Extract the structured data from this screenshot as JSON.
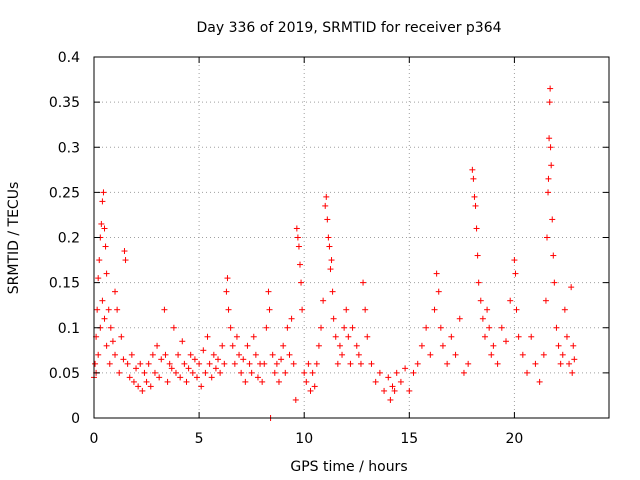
{
  "chart_data": {
    "type": "scatter",
    "title": "Day 336 of 2019, SRMTID for receiver p364",
    "xlabel": "GPS time / hours",
    "ylabel": "SRMTID / TECUs",
    "xlim": [
      0,
      24.5
    ],
    "ylim": [
      0,
      0.4
    ],
    "x_ticks": [
      0,
      5,
      10,
      15,
      20
    ],
    "y_ticks": [
      0,
      0.05,
      0.1,
      0.15,
      0.2,
      0.25,
      0.3,
      0.35,
      0.4
    ],
    "x_tick_labels": [
      "0",
      "5",
      "10",
      "15",
      "20"
    ],
    "y_tick_labels": [
      "0",
      "0.05",
      "0.1",
      "0.15",
      "0.2",
      "0.25",
      "0.3",
      "0.35",
      "0.4"
    ],
    "marker": "+",
    "color": "#ff0000",
    "grid": true,
    "series": [
      {
        "name": "SRMTID",
        "points": [
          [
            0.0,
            0.045
          ],
          [
            0.05,
            0.06
          ],
          [
            0.1,
            0.09
          ],
          [
            0.1,
            0.05
          ],
          [
            0.15,
            0.12
          ],
          [
            0.2,
            0.07
          ],
          [
            0.2,
            0.155
          ],
          [
            0.25,
            0.175
          ],
          [
            0.3,
            0.2
          ],
          [
            0.3,
            0.1
          ],
          [
            0.35,
            0.215
          ],
          [
            0.4,
            0.24
          ],
          [
            0.4,
            0.13
          ],
          [
            0.45,
            0.25
          ],
          [
            0.5,
            0.21
          ],
          [
            0.5,
            0.11
          ],
          [
            0.55,
            0.19
          ],
          [
            0.6,
            0.08
          ],
          [
            0.6,
            0.16
          ],
          [
            0.7,
            0.12
          ],
          [
            0.75,
            0.06
          ],
          [
            0.8,
            0.1
          ],
          [
            0.9,
            0.085
          ],
          [
            1.0,
            0.14
          ],
          [
            1.0,
            0.07
          ],
          [
            1.1,
            0.12
          ],
          [
            1.2,
            0.05
          ],
          [
            1.3,
            0.09
          ],
          [
            1.4,
            0.065
          ],
          [
            1.45,
            0.185
          ],
          [
            1.5,
            0.175
          ],
          [
            1.6,
            0.06
          ],
          [
            1.7,
            0.045
          ],
          [
            1.8,
            0.07
          ],
          [
            1.9,
            0.04
          ],
          [
            2.0,
            0.055
          ],
          [
            2.1,
            0.035
          ],
          [
            2.2,
            0.06
          ],
          [
            2.3,
            0.03
          ],
          [
            2.4,
            0.05
          ],
          [
            2.5,
            0.04
          ],
          [
            2.6,
            0.06
          ],
          [
            2.7,
            0.035
          ],
          [
            2.8,
            0.07
          ],
          [
            2.9,
            0.05
          ],
          [
            3.0,
            0.08
          ],
          [
            3.1,
            0.045
          ],
          [
            3.2,
            0.065
          ],
          [
            3.35,
            0.12
          ],
          [
            3.4,
            0.07
          ],
          [
            3.5,
            0.04
          ],
          [
            3.6,
            0.06
          ],
          [
            3.7,
            0.055
          ],
          [
            3.8,
            0.1
          ],
          [
            3.9,
            0.05
          ],
          [
            4.0,
            0.07
          ],
          [
            4.1,
            0.045
          ],
          [
            4.2,
            0.085
          ],
          [
            4.3,
            0.06
          ],
          [
            4.4,
            0.04
          ],
          [
            4.5,
            0.055
          ],
          [
            4.6,
            0.07
          ],
          [
            4.7,
            0.05
          ],
          [
            4.8,
            0.065
          ],
          [
            4.9,
            0.045
          ],
          [
            5.0,
            0.06
          ],
          [
            5.1,
            0.035
          ],
          [
            5.2,
            0.075
          ],
          [
            5.3,
            0.05
          ],
          [
            5.4,
            0.09
          ],
          [
            5.5,
            0.06
          ],
          [
            5.6,
            0.045
          ],
          [
            5.7,
            0.07
          ],
          [
            5.8,
            0.055
          ],
          [
            5.9,
            0.065
          ],
          [
            6.0,
            0.05
          ],
          [
            6.1,
            0.08
          ],
          [
            6.2,
            0.06
          ],
          [
            6.3,
            0.14
          ],
          [
            6.35,
            0.155
          ],
          [
            6.4,
            0.12
          ],
          [
            6.5,
            0.1
          ],
          [
            6.6,
            0.08
          ],
          [
            6.7,
            0.06
          ],
          [
            6.8,
            0.09
          ],
          [
            6.9,
            0.07
          ],
          [
            7.0,
            0.05
          ],
          [
            7.1,
            0.065
          ],
          [
            7.2,
            0.04
          ],
          [
            7.3,
            0.08
          ],
          [
            7.4,
            0.06
          ],
          [
            7.5,
            0.05
          ],
          [
            7.6,
            0.09
          ],
          [
            7.7,
            0.07
          ],
          [
            7.8,
            0.045
          ],
          [
            7.9,
            0.06
          ],
          [
            8.0,
            0.04
          ],
          [
            8.1,
            0.06
          ],
          [
            8.2,
            0.1
          ],
          [
            8.3,
            0.14
          ],
          [
            8.35,
            0.12
          ],
          [
            8.4,
            0.0
          ],
          [
            8.5,
            0.07
          ],
          [
            8.6,
            0.05
          ],
          [
            8.7,
            0.06
          ],
          [
            8.8,
            0.04
          ],
          [
            8.9,
            0.065
          ],
          [
            9.0,
            0.08
          ],
          [
            9.1,
            0.05
          ],
          [
            9.2,
            0.1
          ],
          [
            9.3,
            0.07
          ],
          [
            9.4,
            0.11
          ],
          [
            9.5,
            0.06
          ],
          [
            9.6,
            0.02
          ],
          [
            9.65,
            0.21
          ],
          [
            9.7,
            0.2
          ],
          [
            9.75,
            0.19
          ],
          [
            9.8,
            0.17
          ],
          [
            9.85,
            0.15
          ],
          [
            9.9,
            0.12
          ],
          [
            10.0,
            0.05
          ],
          [
            10.1,
            0.04
          ],
          [
            10.2,
            0.06
          ],
          [
            10.3,
            0.03
          ],
          [
            10.4,
            0.05
          ],
          [
            10.5,
            0.035
          ],
          [
            10.6,
            0.06
          ],
          [
            10.7,
            0.08
          ],
          [
            10.8,
            0.1
          ],
          [
            10.9,
            0.13
          ],
          [
            11.0,
            0.235
          ],
          [
            11.05,
            0.245
          ],
          [
            11.1,
            0.22
          ],
          [
            11.15,
            0.2
          ],
          [
            11.2,
            0.19
          ],
          [
            11.25,
            0.165
          ],
          [
            11.3,
            0.175
          ],
          [
            11.35,
            0.14
          ],
          [
            11.4,
            0.11
          ],
          [
            11.5,
            0.09
          ],
          [
            11.6,
            0.06
          ],
          [
            11.7,
            0.08
          ],
          [
            11.8,
            0.07
          ],
          [
            11.9,
            0.1
          ],
          [
            12.0,
            0.12
          ],
          [
            12.1,
            0.09
          ],
          [
            12.2,
            0.06
          ],
          [
            12.3,
            0.1
          ],
          [
            12.5,
            0.08
          ],
          [
            12.6,
            0.07
          ],
          [
            12.7,
            0.06
          ],
          [
            12.8,
            0.15
          ],
          [
            12.9,
            0.12
          ],
          [
            13.0,
            0.09
          ],
          [
            13.2,
            0.06
          ],
          [
            13.4,
            0.04
          ],
          [
            13.6,
            0.05
          ],
          [
            13.8,
            0.03
          ],
          [
            14.0,
            0.045
          ],
          [
            14.1,
            0.02
          ],
          [
            14.2,
            0.035
          ],
          [
            14.3,
            0.03
          ],
          [
            14.4,
            0.05
          ],
          [
            14.6,
            0.04
          ],
          [
            14.8,
            0.055
          ],
          [
            15.0,
            0.03
          ],
          [
            15.2,
            0.05
          ],
          [
            15.4,
            0.06
          ],
          [
            15.6,
            0.08
          ],
          [
            15.8,
            0.1
          ],
          [
            16.0,
            0.07
          ],
          [
            16.2,
            0.12
          ],
          [
            16.3,
            0.16
          ],
          [
            16.4,
            0.14
          ],
          [
            16.5,
            0.1
          ],
          [
            16.6,
            0.08
          ],
          [
            16.8,
            0.06
          ],
          [
            17.0,
            0.09
          ],
          [
            17.2,
            0.07
          ],
          [
            17.4,
            0.11
          ],
          [
            17.6,
            0.05
          ],
          [
            17.8,
            0.06
          ],
          [
            18.0,
            0.275
          ],
          [
            18.05,
            0.265
          ],
          [
            18.1,
            0.245
          ],
          [
            18.15,
            0.235
          ],
          [
            18.2,
            0.21
          ],
          [
            18.25,
            0.18
          ],
          [
            18.3,
            0.15
          ],
          [
            18.4,
            0.13
          ],
          [
            18.5,
            0.11
          ],
          [
            18.6,
            0.09
          ],
          [
            18.7,
            0.12
          ],
          [
            18.8,
            0.1
          ],
          [
            18.9,
            0.07
          ],
          [
            19.0,
            0.08
          ],
          [
            19.2,
            0.06
          ],
          [
            19.4,
            0.1
          ],
          [
            19.6,
            0.085
          ],
          [
            19.8,
            0.13
          ],
          [
            20.0,
            0.175
          ],
          [
            20.05,
            0.16
          ],
          [
            20.1,
            0.12
          ],
          [
            20.2,
            0.09
          ],
          [
            20.4,
            0.07
          ],
          [
            20.6,
            0.05
          ],
          [
            20.8,
            0.09
          ],
          [
            21.0,
            0.06
          ],
          [
            21.2,
            0.04
          ],
          [
            21.4,
            0.07
          ],
          [
            21.5,
            0.13
          ],
          [
            21.55,
            0.2
          ],
          [
            21.6,
            0.25
          ],
          [
            21.62,
            0.265
          ],
          [
            21.65,
            0.31
          ],
          [
            21.68,
            0.35
          ],
          [
            21.7,
            0.365
          ],
          [
            21.72,
            0.3
          ],
          [
            21.75,
            0.28
          ],
          [
            21.8,
            0.22
          ],
          [
            21.85,
            0.18
          ],
          [
            21.9,
            0.15
          ],
          [
            22.0,
            0.1
          ],
          [
            22.1,
            0.08
          ],
          [
            22.2,
            0.06
          ],
          [
            22.3,
            0.07
          ],
          [
            22.4,
            0.12
          ],
          [
            22.5,
            0.09
          ],
          [
            22.6,
            0.06
          ],
          [
            22.7,
            0.145
          ],
          [
            22.75,
            0.05
          ],
          [
            22.8,
            0.08
          ],
          [
            22.85,
            0.065
          ]
        ]
      }
    ]
  }
}
